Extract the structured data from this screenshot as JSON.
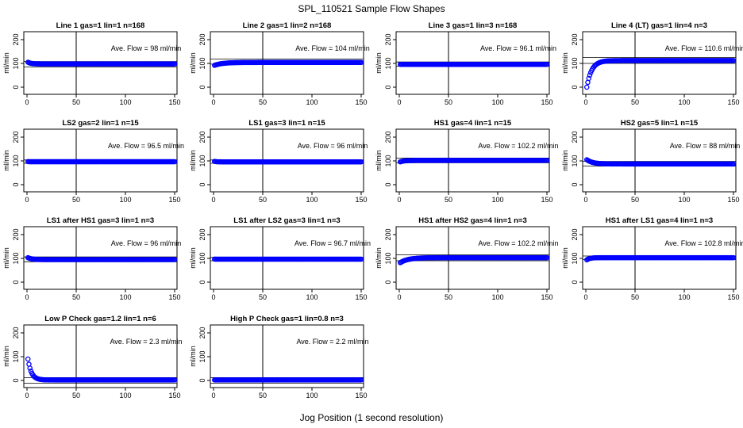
{
  "figure": {
    "title": "SPL_110521  Sample Flow Shapes",
    "xlabel": "Jog Position (1 second resolution)",
    "marker_color": "#0000ff"
  },
  "chart_data": [
    {
      "type": "scatter",
      "title": "Line 1 gas=1 lin=1 n=168",
      "ylabel": "ml/min",
      "annotation": "Ave. Flow =  98  ml/min",
      "mean": 98,
      "xlim": [
        0,
        150
      ],
      "ylim": [
        0,
        200
      ],
      "xticks": [
        0,
        50,
        100,
        150
      ],
      "yticks": [
        0,
        100,
        200
      ],
      "vline": 50,
      "hlines": [
        108,
        85
      ],
      "shape": {
        "kind": "flat",
        "start": 105,
        "end": 98,
        "tau": 3,
        "x_start": 1,
        "x_end": 150
      }
    },
    {
      "type": "scatter",
      "title": "Line 2 gas=1 lin=2 n=168",
      "ylabel": "ml/min",
      "annotation": "Ave. Flow =  104  ml/min",
      "mean": 104,
      "xlim": [
        0,
        150
      ],
      "ylim": [
        0,
        200
      ],
      "xticks": [
        0,
        50,
        100,
        150
      ],
      "yticks": [
        0,
        100,
        200
      ],
      "vline": 50,
      "hlines": [
        118,
        97
      ],
      "shape": {
        "kind": "flat",
        "start": 92,
        "end": 104,
        "tau": 8,
        "x_start": 1,
        "x_end": 150
      }
    },
    {
      "type": "scatter",
      "title": "Line 3 gas=1 lin=3 n=168",
      "ylabel": "ml/min",
      "annotation": "Ave. Flow =  96.1  ml/min",
      "mean": 96.1,
      "xlim": [
        0,
        150
      ],
      "ylim": [
        0,
        200
      ],
      "xticks": [
        0,
        50,
        100,
        150
      ],
      "yticks": [
        0,
        100,
        200
      ],
      "vline": 50,
      "hlines": [
        106,
        88
      ],
      "shape": {
        "kind": "flat",
        "start": 96,
        "end": 96,
        "tau": 1,
        "x_start": 1,
        "x_end": 150
      }
    },
    {
      "type": "scatter",
      "title": "Line 4 (LT) gas=1 lin=4 n=3",
      "ylabel": "ml/min",
      "annotation": "Ave. Flow =  110.6  ml/min",
      "mean": 110.6,
      "xlim": [
        0,
        150
      ],
      "ylim": [
        0,
        200
      ],
      "xticks": [
        0,
        50,
        100,
        150
      ],
      "yticks": [
        0,
        100,
        200
      ],
      "vline": 50,
      "hlines": [
        125,
        100
      ],
      "shape": {
        "kind": "rise",
        "start": 0,
        "end": 112,
        "tau": 5,
        "x_start": 1,
        "x_end": 150
      }
    },
    {
      "type": "scatter",
      "title": "LS2 gas=2 lin=1 n=15",
      "ylabel": "ml/min",
      "annotation": "Ave. Flow =  96.5  ml/min",
      "mean": 96.5,
      "xlim": [
        0,
        150
      ],
      "ylim": [
        0,
        200
      ],
      "xticks": [
        0,
        50,
        100,
        150
      ],
      "yticks": [
        0,
        100,
        200
      ],
      "vline": 50,
      "hlines": [
        104,
        90
      ],
      "shape": {
        "kind": "flat",
        "start": 97,
        "end": 96.5,
        "tau": 1,
        "x_start": 1,
        "x_end": 150
      }
    },
    {
      "type": "scatter",
      "title": "LS1 gas=3 lin=1 n=15",
      "ylabel": "ml/min",
      "annotation": "Ave. Flow =  96  ml/min",
      "mean": 96,
      "xlim": [
        0,
        150
      ],
      "ylim": [
        0,
        200
      ],
      "xticks": [
        0,
        50,
        100,
        150
      ],
      "yticks": [
        0,
        100,
        200
      ],
      "vline": 50,
      "hlines": [
        104,
        90
      ],
      "shape": {
        "kind": "flat",
        "start": 98,
        "end": 96,
        "tau": 2,
        "x_start": 1,
        "x_end": 150
      }
    },
    {
      "type": "scatter",
      "title": "HS1 gas=4 lin=1 n=15",
      "ylabel": "ml/min",
      "annotation": "Ave. Flow =  102.2  ml/min",
      "mean": 102.2,
      "xlim": [
        0,
        150
      ],
      "ylim": [
        0,
        200
      ],
      "xticks": [
        0,
        50,
        100,
        150
      ],
      "yticks": [
        0,
        100,
        200
      ],
      "vline": 50,
      "hlines": [
        112,
        92
      ],
      "shape": {
        "kind": "flat",
        "start": 96,
        "end": 102,
        "tau": 4,
        "x_start": 1,
        "x_end": 150
      }
    },
    {
      "type": "scatter",
      "title": "HS2 gas=5 lin=1 n=15",
      "ylabel": "ml/min",
      "annotation": "Ave. Flow =  88  ml/min",
      "mean": 88,
      "xlim": [
        0,
        150
      ],
      "ylim": [
        0,
        200
      ],
      "xticks": [
        0,
        50,
        100,
        150
      ],
      "yticks": [
        0,
        100,
        200
      ],
      "vline": 50,
      "hlines": [
        98,
        78
      ],
      "shape": {
        "kind": "flat",
        "start": 105,
        "end": 87,
        "tau": 6,
        "x_start": 1,
        "x_end": 150
      }
    },
    {
      "type": "scatter",
      "title": "LS1 after HS1 gas=3 lin=1 n=3",
      "ylabel": "ml/min",
      "annotation": "Ave. Flow =  96  ml/min",
      "mean": 96,
      "xlim": [
        0,
        150
      ],
      "ylim": [
        0,
        200
      ],
      "xticks": [
        0,
        50,
        100,
        150
      ],
      "yticks": [
        0,
        100,
        200
      ],
      "vline": 50,
      "hlines": [
        106,
        86
      ],
      "shape": {
        "kind": "flat",
        "start": 103,
        "end": 95,
        "tau": 4,
        "x_start": 1,
        "x_end": 150
      }
    },
    {
      "type": "scatter",
      "title": "LS1 after LS2 gas=3 lin=1 n=3",
      "ylabel": "ml/min",
      "annotation": "Ave. Flow =  96.7  ml/min",
      "mean": 96.7,
      "xlim": [
        0,
        150
      ],
      "ylim": [
        0,
        200
      ],
      "xticks": [
        0,
        50,
        100,
        150
      ],
      "yticks": [
        0,
        100,
        200
      ],
      "vline": 50,
      "hlines": [
        104,
        90
      ],
      "shape": {
        "kind": "flat",
        "start": 97,
        "end": 96.7,
        "tau": 1,
        "x_start": 1,
        "x_end": 150
      }
    },
    {
      "type": "scatter",
      "title": "HS1 after HS2 gas=4 lin=1 n=3",
      "ylabel": "ml/min",
      "annotation": "Ave. Flow =  102.2  ml/min",
      "mean": 102.2,
      "xlim": [
        0,
        150
      ],
      "ylim": [
        0,
        200
      ],
      "xticks": [
        0,
        50,
        100,
        150
      ],
      "yticks": [
        0,
        100,
        200
      ],
      "vline": 50,
      "hlines": [
        115,
        90
      ],
      "shape": {
        "kind": "rise",
        "start": 82,
        "end": 103,
        "tau": 8,
        "x_start": 1,
        "x_end": 150
      }
    },
    {
      "type": "scatter",
      "title": "HS1 after LS1 gas=4 lin=1 n=3",
      "ylabel": "ml/min",
      "annotation": "Ave. Flow =  102.8  ml/min",
      "mean": 102.8,
      "xlim": [
        0,
        150
      ],
      "ylim": [
        0,
        200
      ],
      "xticks": [
        0,
        50,
        100,
        150
      ],
      "yticks": [
        0,
        100,
        200
      ],
      "vline": 50,
      "hlines": [
        110,
        95
      ],
      "shape": {
        "kind": "flat",
        "start": 94,
        "end": 103,
        "tau": 3,
        "x_start": 1,
        "x_end": 150
      }
    },
    {
      "type": "scatter",
      "title": "Low P Check gas=1.2 lin=1 n=6",
      "ylabel": "ml/min",
      "annotation": "Ave. Flow =  2.3  ml/min",
      "mean": 2.3,
      "xlim": [
        0,
        150
      ],
      "ylim": [
        0,
        200
      ],
      "xticks": [
        0,
        50,
        100,
        150
      ],
      "yticks": [
        0,
        100,
        200
      ],
      "vline": 50,
      "hlines": [
        12,
        -12
      ],
      "shape": {
        "kind": "decay",
        "start": 90,
        "end": 2,
        "tau": 3.5,
        "x_start": 1,
        "x_end": 150
      }
    },
    {
      "type": "scatter",
      "title": "High P Check gas=1 lin=0.8 n=3",
      "ylabel": "ml/min",
      "annotation": "Ave. Flow =  2.2  ml/min",
      "mean": 2.2,
      "xlim": [
        0,
        150
      ],
      "ylim": [
        0,
        200
      ],
      "xticks": [
        0,
        50,
        100,
        150
      ],
      "yticks": [
        0,
        100,
        200
      ],
      "vline": 50,
      "hlines": [
        12,
        -12
      ],
      "shape": {
        "kind": "flat",
        "start": 2.2,
        "end": 2.2,
        "tau": 1,
        "x_start": 1,
        "x_end": 150
      }
    }
  ]
}
